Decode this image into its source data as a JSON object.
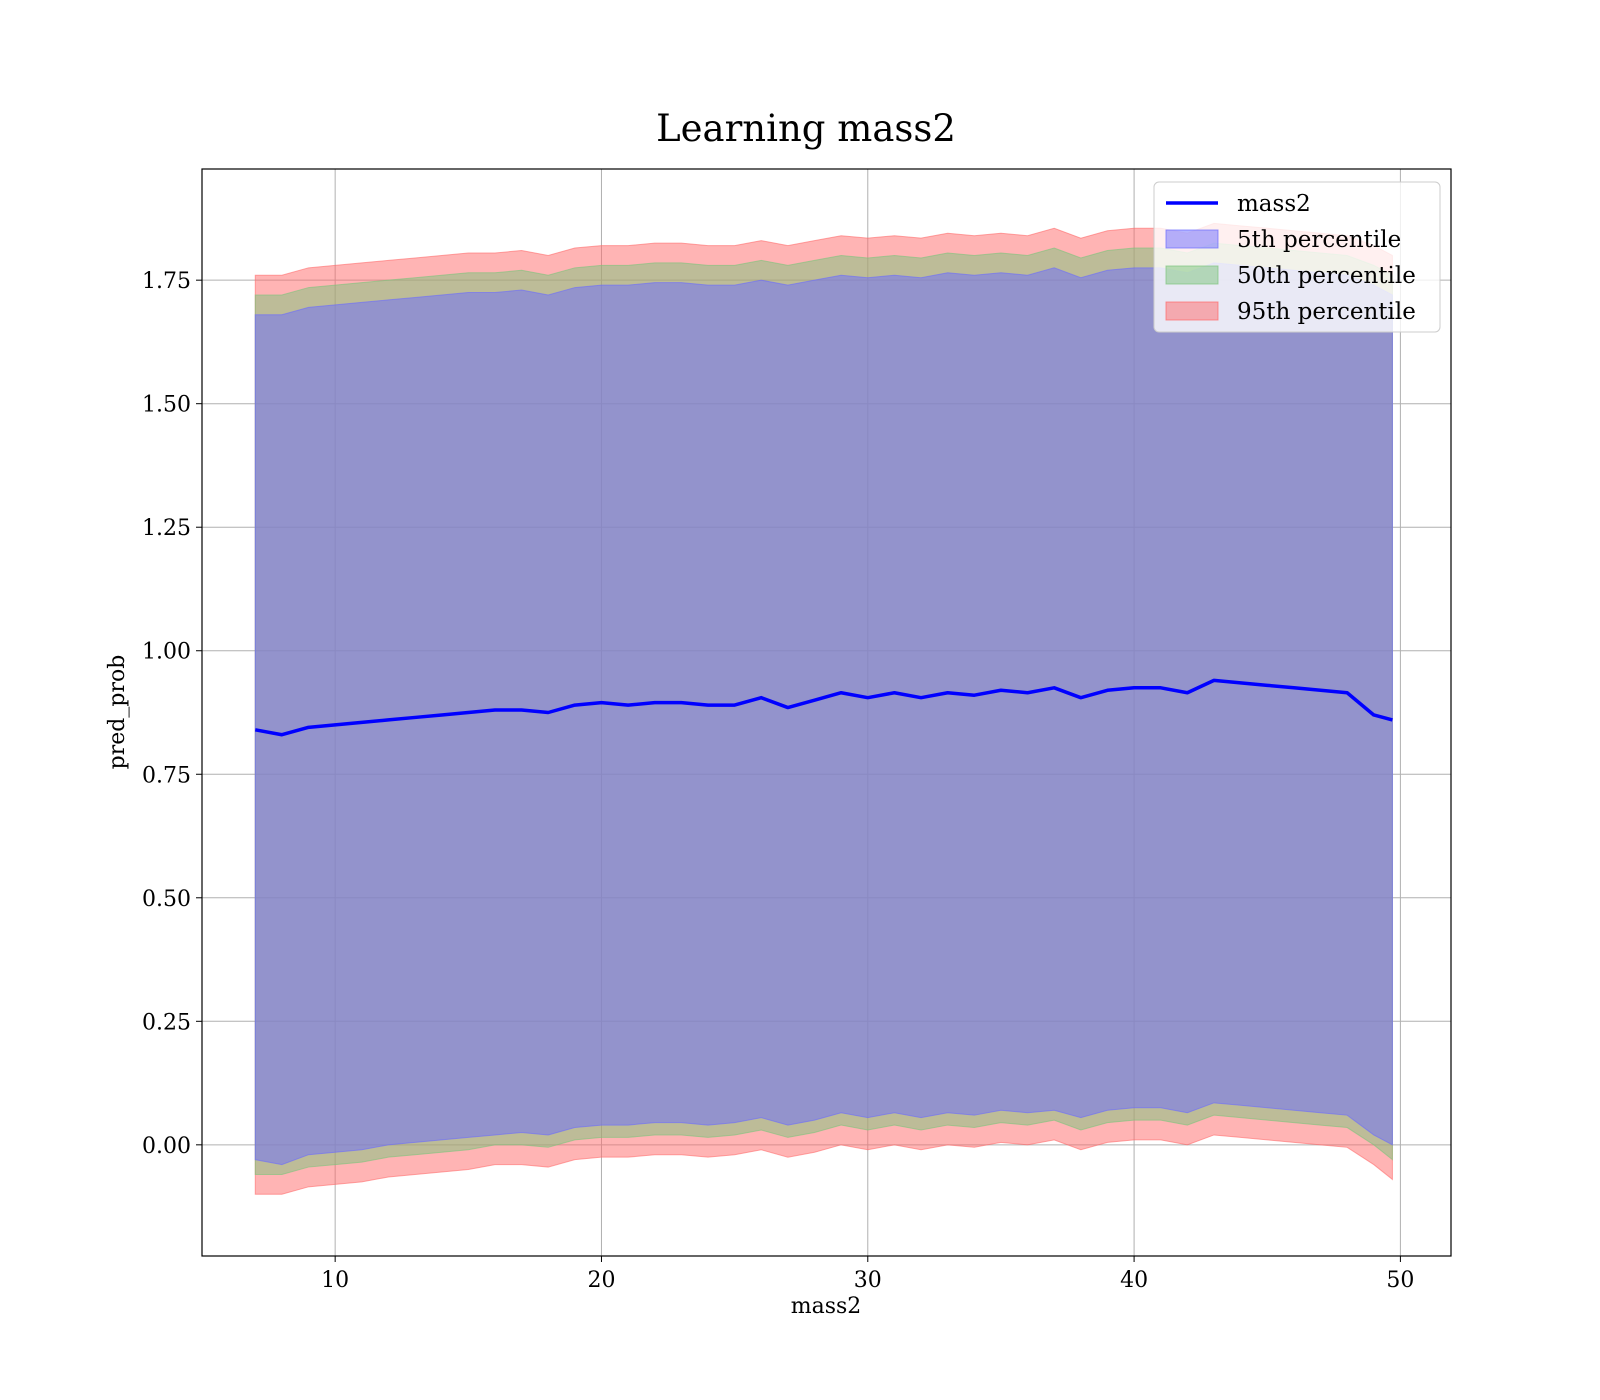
{
  "chart_data": {
    "type": "area",
    "title": "Learning mass2",
    "xlabel": "mass2",
    "ylabel": "pred_prob",
    "xlim": [
      5.0,
      51.9
    ],
    "ylim": [
      -0.225,
      1.975
    ],
    "grid": true,
    "legend_position": "top-right",
    "x_ticks": [
      10,
      20,
      30,
      40,
      50
    ],
    "x_tick_labels": [
      "10",
      "20",
      "30",
      "40",
      "50"
    ],
    "y_ticks": [
      0.0,
      0.25,
      0.5,
      0.75,
      1.0,
      1.25,
      1.5,
      1.75
    ],
    "y_tick_labels": [
      "0.00",
      "0.25",
      "0.50",
      "0.75",
      "1.00",
      "1.25",
      "1.50",
      "1.75"
    ],
    "x": [
      7.0,
      8.0,
      9.0,
      10.0,
      11.0,
      12.0,
      13.0,
      14.0,
      15.0,
      16.0,
      17.0,
      18.0,
      19.0,
      20.0,
      21.0,
      22.0,
      23.0,
      24.0,
      25.0,
      26.0,
      27.0,
      28.0,
      29.0,
      30.0,
      31.0,
      32.0,
      33.0,
      34.0,
      35.0,
      36.0,
      37.0,
      38.0,
      39.0,
      40.0,
      41.0,
      42.0,
      43.0,
      44.0,
      45.0,
      46.0,
      47.0,
      48.0,
      49.0,
      49.7
    ],
    "series": [
      {
        "name": "mass2",
        "kind": "line",
        "color": "#0000ff",
        "values": [
          0.84,
          0.83,
          0.845,
          0.85,
          0.855,
          0.86,
          0.865,
          0.87,
          0.875,
          0.88,
          0.88,
          0.875,
          0.89,
          0.895,
          0.89,
          0.895,
          0.895,
          0.89,
          0.89,
          0.905,
          0.885,
          0.9,
          0.915,
          0.905,
          0.915,
          0.905,
          0.915,
          0.91,
          0.92,
          0.915,
          0.925,
          0.905,
          0.92,
          0.925,
          0.925,
          0.915,
          0.94,
          0.935,
          0.93,
          0.925,
          0.92,
          0.915,
          0.87,
          0.86
        ]
      },
      {
        "name": "5th percentile",
        "kind": "band",
        "color": "#6a6aff",
        "lower": [
          -0.03,
          -0.04,
          -0.02,
          -0.015,
          -0.01,
          0.0,
          0.005,
          0.01,
          0.015,
          0.02,
          0.025,
          0.02,
          0.035,
          0.04,
          0.04,
          0.045,
          0.045,
          0.04,
          0.045,
          0.055,
          0.04,
          0.05,
          0.065,
          0.055,
          0.065,
          0.055,
          0.065,
          0.06,
          0.07,
          0.065,
          0.07,
          0.055,
          0.07,
          0.075,
          0.075,
          0.065,
          0.085,
          0.08,
          0.075,
          0.07,
          0.065,
          0.06,
          0.02,
          0.0
        ],
        "upper": [
          1.68,
          1.68,
          1.695,
          1.7,
          1.705,
          1.71,
          1.715,
          1.72,
          1.725,
          1.725,
          1.73,
          1.72,
          1.735,
          1.74,
          1.74,
          1.745,
          1.745,
          1.74,
          1.74,
          1.75,
          1.74,
          1.75,
          1.76,
          1.755,
          1.76,
          1.755,
          1.765,
          1.76,
          1.765,
          1.76,
          1.775,
          1.755,
          1.77,
          1.775,
          1.775,
          1.765,
          1.785,
          1.78,
          1.775,
          1.77,
          1.765,
          1.76,
          1.74,
          1.72
        ]
      },
      {
        "name": "50th percentile",
        "kind": "band",
        "color": "#7cc47c",
        "lower": [
          -0.06,
          -0.06,
          -0.045,
          -0.04,
          -0.035,
          -0.025,
          -0.02,
          -0.015,
          -0.01,
          0.0,
          0.0,
          -0.005,
          0.01,
          0.015,
          0.015,
          0.02,
          0.02,
          0.015,
          0.02,
          0.03,
          0.015,
          0.025,
          0.04,
          0.03,
          0.04,
          0.03,
          0.04,
          0.035,
          0.045,
          0.04,
          0.05,
          0.03,
          0.045,
          0.05,
          0.05,
          0.04,
          0.06,
          0.055,
          0.05,
          0.045,
          0.04,
          0.035,
          0.0,
          -0.03
        ],
        "upper": [
          1.72,
          1.72,
          1.735,
          1.74,
          1.745,
          1.75,
          1.755,
          1.76,
          1.765,
          1.765,
          1.77,
          1.76,
          1.775,
          1.78,
          1.78,
          1.785,
          1.785,
          1.78,
          1.78,
          1.79,
          1.78,
          1.79,
          1.8,
          1.795,
          1.8,
          1.795,
          1.805,
          1.8,
          1.805,
          1.8,
          1.815,
          1.795,
          1.81,
          1.815,
          1.815,
          1.805,
          1.825,
          1.82,
          1.815,
          1.81,
          1.805,
          1.8,
          1.78,
          1.76
        ]
      },
      {
        "name": "95th percentile",
        "kind": "band",
        "color": "#ff6a6a",
        "lower": [
          -0.1,
          -0.1,
          -0.085,
          -0.08,
          -0.075,
          -0.065,
          -0.06,
          -0.055,
          -0.05,
          -0.04,
          -0.04,
          -0.045,
          -0.03,
          -0.025,
          -0.025,
          -0.02,
          -0.02,
          -0.025,
          -0.02,
          -0.01,
          -0.025,
          -0.015,
          0.0,
          -0.01,
          0.0,
          -0.01,
          0.0,
          -0.005,
          0.005,
          0.0,
          0.01,
          -0.01,
          0.005,
          0.01,
          0.01,
          0.0,
          0.02,
          0.015,
          0.01,
          0.005,
          0.0,
          -0.005,
          -0.04,
          -0.07
        ],
        "upper": [
          1.76,
          1.76,
          1.775,
          1.78,
          1.785,
          1.79,
          1.795,
          1.8,
          1.805,
          1.805,
          1.81,
          1.8,
          1.815,
          1.82,
          1.82,
          1.825,
          1.825,
          1.82,
          1.82,
          1.83,
          1.82,
          1.83,
          1.84,
          1.835,
          1.84,
          1.835,
          1.845,
          1.84,
          1.845,
          1.84,
          1.855,
          1.835,
          1.85,
          1.855,
          1.855,
          1.845,
          1.865,
          1.86,
          1.855,
          1.85,
          1.845,
          1.84,
          1.82,
          1.8
        ]
      }
    ]
  }
}
